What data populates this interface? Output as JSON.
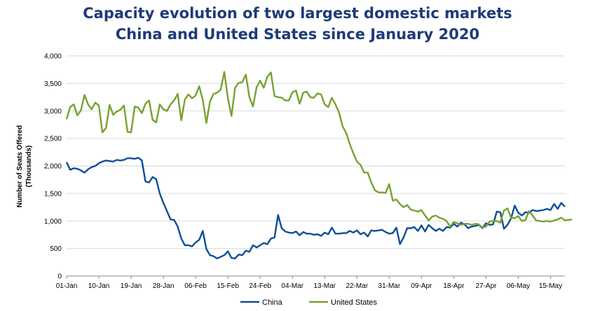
{
  "chart_data": {
    "type": "line",
    "title_line1": "Capacity evolution of two largest domestic markets",
    "title_line2": "China and United States since January 2020",
    "ylabel_line1": "Number of Seats Offered",
    "ylabel_line2": "(Thousands)",
    "ylim": [
      0,
      4000
    ],
    "yticks": [
      "0",
      "500",
      "1,000",
      "1,500",
      "2,000",
      "2,500",
      "3,000",
      "3,500",
      "4,000"
    ],
    "xticks": [
      "01-Jan",
      "10-Jan",
      "19-Jan",
      "28-Jan",
      "06-Feb",
      "15-Feb",
      "24-Feb",
      "04-Mar",
      "13-Mar",
      "22-Mar",
      "31-Mar",
      "09-Apr",
      "18-Apr",
      "27-Apr",
      "06-May",
      "15-May"
    ],
    "x_start": "01-Jan",
    "x_end": "20-May",
    "legend_position": "bottom",
    "grid": "horizontal",
    "series": [
      {
        "name": "China",
        "color": "#0d4e96",
        "values": [
          2070,
          1930,
          1960,
          1950,
          1920,
          1880,
          1940,
          1980,
          2000,
          2050,
          2080,
          2100,
          2090,
          2080,
          2110,
          2100,
          2110,
          2140,
          2140,
          2130,
          2150,
          2100,
          1720,
          1700,
          1800,
          1760,
          1500,
          1330,
          1180,
          1030,
          1020,
          900,
          680,
          560,
          560,
          540,
          610,
          660,
          820,
          490,
          380,
          360,
          320,
          350,
          380,
          450,
          330,
          320,
          390,
          380,
          460,
          440,
          560,
          520,
          560,
          600,
          580,
          680,
          700,
          1110,
          870,
          810,
          790,
          780,
          810,
          740,
          800,
          770,
          770,
          750,
          760,
          730,
          790,
          760,
          880,
          770,
          770,
          780,
          780,
          820,
          790,
          830,
          760,
          790,
          720,
          830,
          820,
          830,
          840,
          800,
          770,
          780,
          880,
          580,
          700,
          870,
          870,
          890,
          820,
          920,
          810,
          930,
          870,
          820,
          860,
          820,
          890,
          880,
          950,
          900,
          970,
          940,
          870,
          900,
          910,
          930,
          870,
          960,
          930,
          940,
          1170,
          1160,
          860,
          930,
          1050,
          1280,
          1150,
          1100,
          1160,
          1150,
          1200,
          1180,
          1190,
          1200,
          1220,
          1200,
          1310,
          1220,
          1330,
          1260
        ]
      },
      {
        "name": "United States",
        "color": "#76a22e",
        "values": [
          2850,
          3070,
          3120,
          2920,
          3010,
          3290,
          3120,
          3030,
          3150,
          3100,
          2610,
          2690,
          3110,
          2930,
          2990,
          3020,
          3100,
          2620,
          2610,
          3080,
          3060,
          2960,
          3130,
          3190,
          2840,
          2790,
          3120,
          3030,
          3000,
          3120,
          3190,
          3310,
          2830,
          3210,
          3300,
          3230,
          3280,
          3450,
          3200,
          2780,
          3170,
          3310,
          3330,
          3390,
          3710,
          3230,
          2910,
          3420,
          3510,
          3520,
          3660,
          3250,
          3080,
          3430,
          3550,
          3420,
          3620,
          3700,
          3270,
          3250,
          3240,
          3190,
          3190,
          3340,
          3370,
          3130,
          3330,
          3350,
          3250,
          3240,
          3320,
          3300,
          3120,
          3070,
          3240,
          3120,
          2970,
          2720,
          2600,
          2400,
          2230,
          2080,
          2020,
          1880,
          1880,
          1700,
          1560,
          1520,
          1520,
          1510,
          1670,
          1370,
          1390,
          1310,
          1250,
          1290,
          1210,
          1190,
          1170,
          1200,
          1100,
          1010,
          1080,
          1100,
          1060,
          1040,
          1000,
          900,
          980,
          960,
          930,
          950,
          950,
          930,
          950,
          940,
          880,
          900,
          990,
          1000,
          1000,
          970,
          1190,
          1230,
          1060,
          1050,
          1090,
          1000,
          1020,
          1180,
          1100,
          1010,
          1000,
          990,
          1000,
          990,
          1010,
          1030,
          1060,
          1010,
          1020,
          1030
        ]
      }
    ]
  }
}
